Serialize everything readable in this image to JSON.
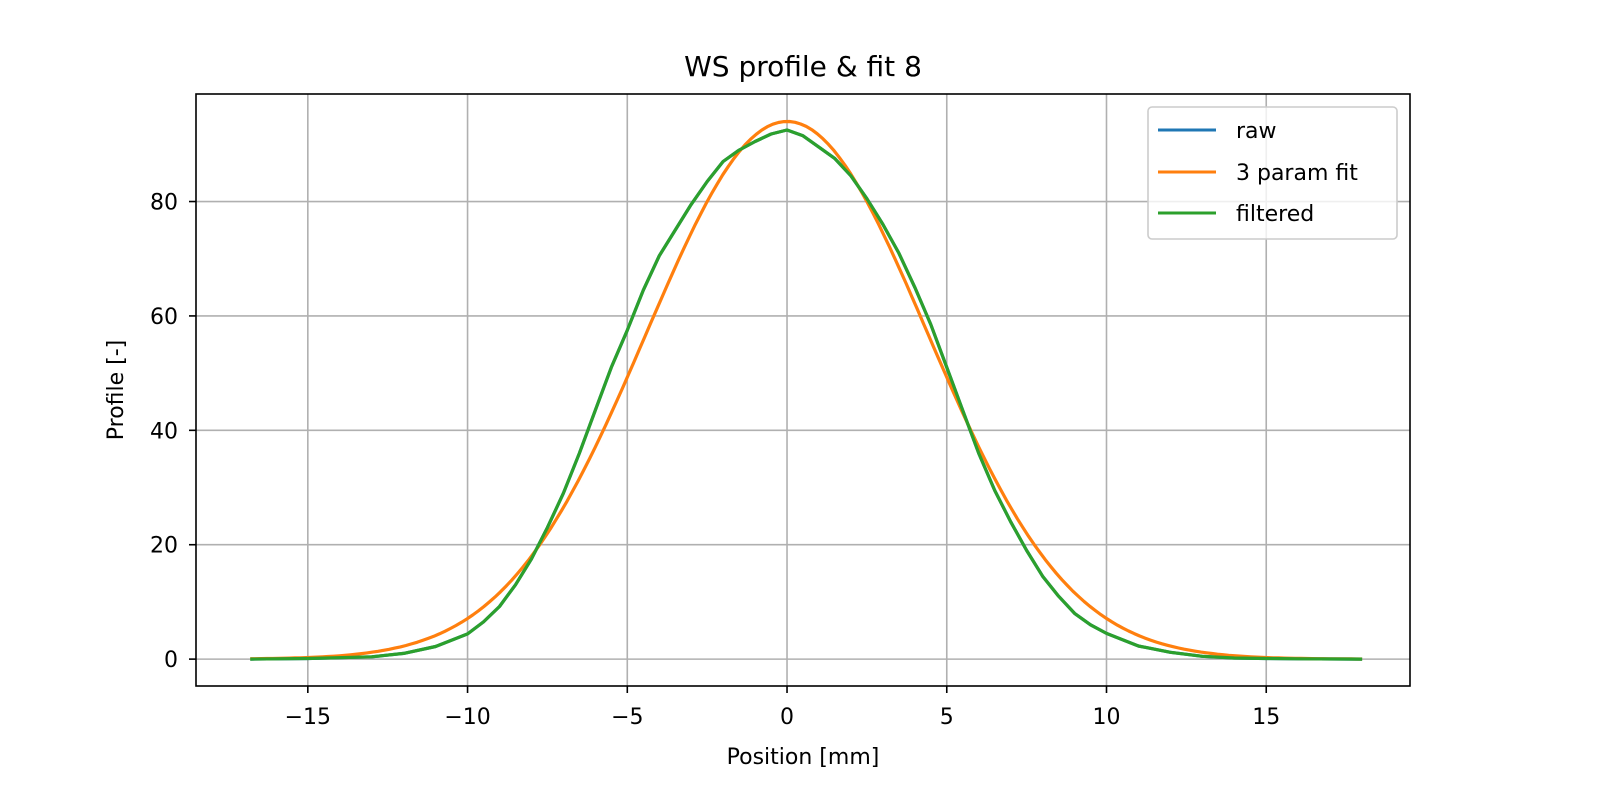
{
  "chart_data": {
    "type": "line",
    "title": "WS profile & fit 8",
    "xlabel": "Position [mm]",
    "ylabel": "Profile [-]",
    "xlim": [
      -18.5,
      19.5
    ],
    "ylim": [
      -4.7,
      98.8
    ],
    "xticks": [
      -15,
      -10,
      -5,
      0,
      5,
      10,
      15
    ],
    "xtick_labels": [
      "−15",
      "−10",
      "−5",
      "0",
      "5",
      "10",
      "15"
    ],
    "yticks": [
      0,
      20,
      40,
      60,
      80
    ],
    "ytick_labels": [
      "0",
      "20",
      "40",
      "60",
      "80"
    ],
    "grid": true,
    "legend_position": "top-right",
    "series": [
      {
        "name": "raw",
        "color": "#1f77b4",
        "x": [
          -16.8,
          -15,
          -13,
          -12,
          -11,
          -10,
          -9.5,
          -9,
          -8.5,
          -8,
          -7.5,
          -7,
          -6.5,
          -6,
          -5.5,
          -5,
          -4.5,
          -4,
          -3.5,
          -3,
          -2.5,
          -2,
          -1.5,
          -1,
          -0.5,
          0,
          0.5,
          1,
          1.5,
          2,
          2.5,
          3,
          3.5,
          4,
          4.5,
          5,
          5.5,
          6,
          6.5,
          7,
          7.5,
          8,
          8.5,
          9,
          9.5,
          10,
          11,
          12,
          13,
          14,
          15,
          16,
          18
        ],
        "y": [
          0,
          0.1,
          0.4,
          1.0,
          2.2,
          4.4,
          6.5,
          9.2,
          13.0,
          17.5,
          23.0,
          29.0,
          36.0,
          43.5,
          51.0,
          57.5,
          64.5,
          70.5,
          75.0,
          79.5,
          83.5,
          87.0,
          89.0,
          90.5,
          91.8,
          92.5,
          91.5,
          89.5,
          87.5,
          84.5,
          80.5,
          76.0,
          71.0,
          65.0,
          58.5,
          51.0,
          43.5,
          36.0,
          29.5,
          24.0,
          19.0,
          14.5,
          11.0,
          8.0,
          6.0,
          4.5,
          2.3,
          1.2,
          0.5,
          0.2,
          0.1,
          0.05,
          0
        ]
      },
      {
        "name": "3 param fit",
        "color": "#ff7f0e",
        "fit": {
          "amplitude": 94.0,
          "mean": 0.0,
          "sigma": 4.4
        },
        "x_range": [
          -16.8,
          18.0
        ]
      },
      {
        "name": "filtered",
        "color": "#2ca02c",
        "x": [
          -16.8,
          -15,
          -13,
          -12,
          -11,
          -10,
          -9.5,
          -9,
          -8.5,
          -8,
          -7.5,
          -7,
          -6.5,
          -6,
          -5.5,
          -5,
          -4.5,
          -4,
          -3.5,
          -3,
          -2.5,
          -2,
          -1.5,
          -1,
          -0.5,
          0,
          0.5,
          1,
          1.5,
          2,
          2.5,
          3,
          3.5,
          4,
          4.5,
          5,
          5.5,
          6,
          6.5,
          7,
          7.5,
          8,
          8.5,
          9,
          9.5,
          10,
          11,
          12,
          13,
          14,
          15,
          16,
          18
        ],
        "y": [
          0,
          0.1,
          0.4,
          1.0,
          2.2,
          4.4,
          6.5,
          9.2,
          13.0,
          17.5,
          23.0,
          29.0,
          36.0,
          43.5,
          51.0,
          57.5,
          64.5,
          70.5,
          75.0,
          79.5,
          83.5,
          87.0,
          89.0,
          90.5,
          91.8,
          92.5,
          91.5,
          89.5,
          87.5,
          84.5,
          80.5,
          76.0,
          71.0,
          65.0,
          58.5,
          51.0,
          43.5,
          36.0,
          29.5,
          24.0,
          19.0,
          14.5,
          11.0,
          8.0,
          6.0,
          4.5,
          2.3,
          1.2,
          0.5,
          0.2,
          0.1,
          0.05,
          0
        ]
      }
    ]
  }
}
